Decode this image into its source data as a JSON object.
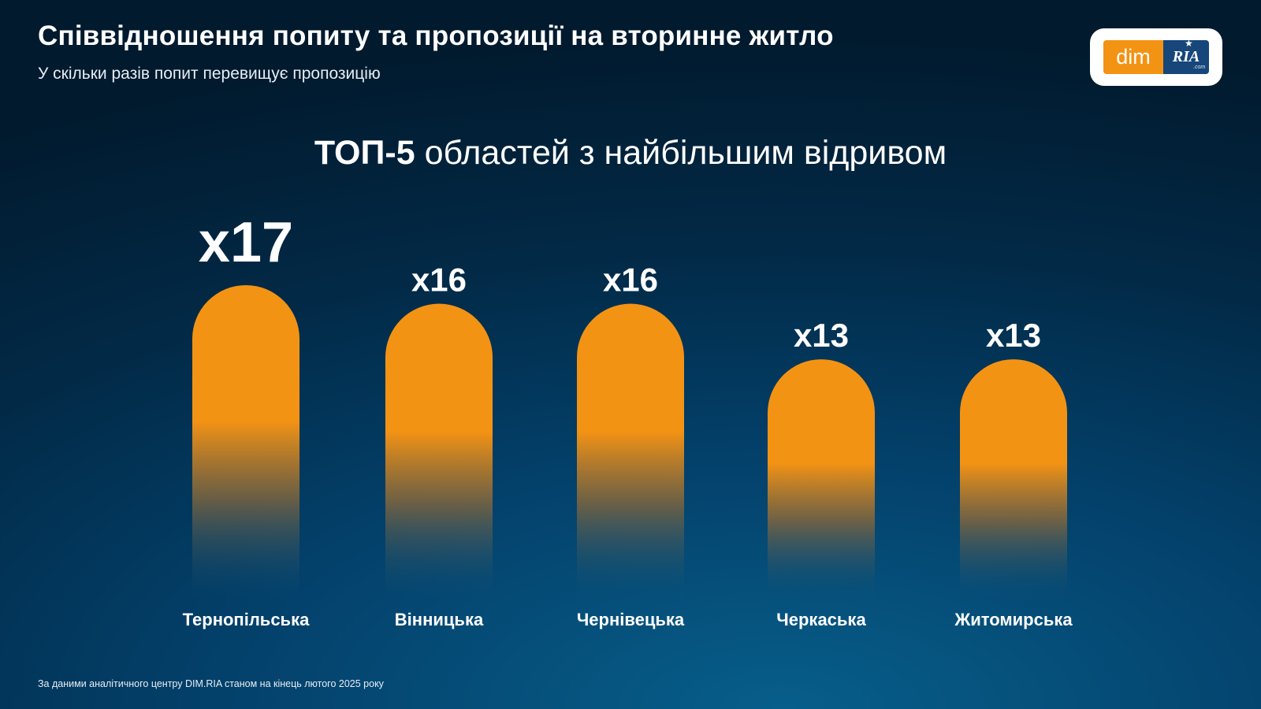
{
  "header": {
    "title": "Співвідношення попиту та пропозиції на вторинне житло",
    "subtitle": "У скільки разів попит перевищує пропозицію"
  },
  "logo": {
    "left_text": "dim",
    "right_text": "RIA",
    "suffix_text": ".com"
  },
  "chart_heading": {
    "highlight": "ТОП-5",
    "rest": "областей з найбільшим відривом"
  },
  "chart_data": {
    "type": "bar",
    "title": "ТОП-5 областей з найбільшим відривом",
    "categories": [
      "Тернопільська",
      "Вінницька",
      "Чернівецька",
      "Черкаська",
      "Житомирська"
    ],
    "values": [
      17,
      16,
      16,
      13,
      13
    ],
    "labels": [
      "x17",
      "x16",
      "x16",
      "x13",
      "x13"
    ],
    "bar_color": "#f39314",
    "bar_fade_color": "#0b4d78",
    "show_axes": false,
    "grid": false
  },
  "footnote": "За даними аналітичного центру DIM.RIA станом на кінець лютого 2025 року"
}
